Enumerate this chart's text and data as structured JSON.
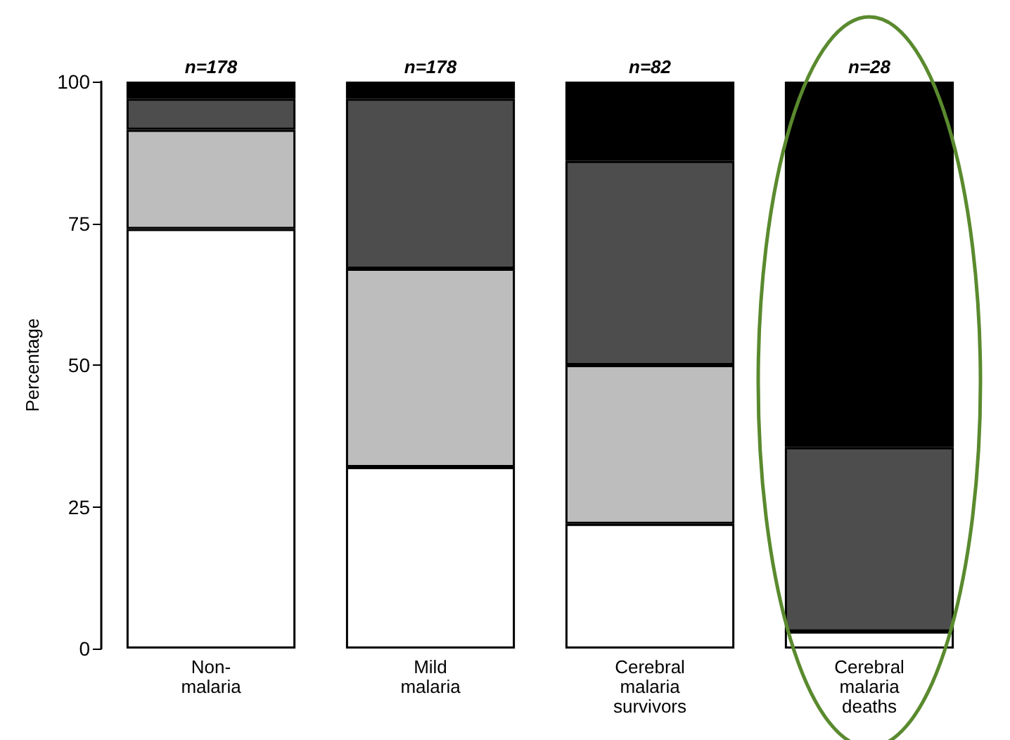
{
  "chart_data": {
    "type": "bar",
    "ylabel": "Percentage",
    "stacked": true,
    "categories": [
      "Non-malaria",
      "Mild malaria",
      "Cerebral malaria survivors",
      "Cerebral malaria deaths"
    ],
    "series": [
      {
        "color": "#ffffff",
        "values": [
          74,
          32,
          22,
          3
        ]
      },
      {
        "color": "#bdbdbd",
        "values": [
          17.5,
          35,
          28,
          0
        ]
      },
      {
        "color": "#4d4d4d",
        "values": [
          5.5,
          30,
          36,
          32.5
        ]
      },
      {
        "color": "#000000",
        "values": [
          3,
          3,
          14,
          64.5
        ]
      }
    ],
    "ylim": [
      0,
      100
    ],
    "yticks": [
      0,
      25,
      50,
      75,
      100
    ],
    "grid": false,
    "annotations": [
      {
        "text": "n=178",
        "x": "Non-malaria",
        "y": 100
      },
      {
        "text": "n=178",
        "x": "Mild malaria",
        "y": 100
      },
      {
        "text": "n=82",
        "x": "Cerebral malaria survivors",
        "y": 100
      },
      {
        "text": "n=28",
        "x": "Cerebral malaria deaths",
        "y": 100
      }
    ]
  }
}
